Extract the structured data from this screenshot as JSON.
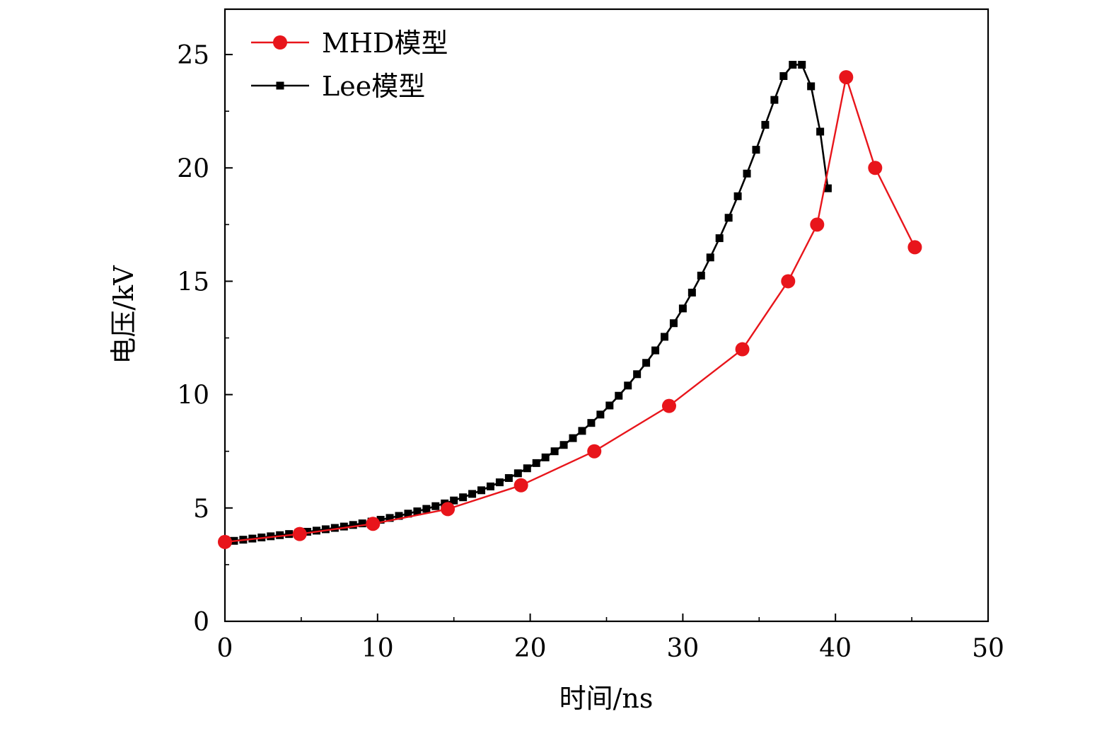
{
  "chart_data": {
    "type": "line",
    "title": "",
    "xlabel": "时间/ns",
    "ylabel": "电压/kV",
    "xlim": [
      0,
      50
    ],
    "ylim": [
      0,
      27
    ],
    "xticks": [
      0,
      10,
      20,
      30,
      40,
      50
    ],
    "yticks": [
      0,
      5,
      10,
      15,
      20,
      25
    ],
    "x_minor_step": 5,
    "y_minor_step": 2.5,
    "grid": false,
    "legend_position": "top-left",
    "series": [
      {
        "name": "MHD模型",
        "color": "#e8151b",
        "marker": "circle",
        "x": [
          0,
          4.9,
          9.7,
          14.6,
          19.4,
          24.2,
          29.1,
          33.9,
          36.9,
          38.8,
          40.7,
          42.6,
          45.2
        ],
        "y": [
          3.5,
          3.85,
          4.3,
          4.95,
          6.0,
          7.5,
          9.5,
          12.0,
          15.0,
          17.5,
          24.0,
          20.0,
          16.5
        ]
      },
      {
        "name": "Lee模型",
        "color": "#000000",
        "marker": "square",
        "x": [
          0,
          0.6,
          1.2,
          1.8,
          2.4,
          3.0,
          3.6,
          4.2,
          4.8,
          5.4,
          6.0,
          6.6,
          7.2,
          7.8,
          8.4,
          9.0,
          9.6,
          10.2,
          10.8,
          11.4,
          12.0,
          12.6,
          13.2,
          13.8,
          14.4,
          15.0,
          15.6,
          16.2,
          16.8,
          17.4,
          18.0,
          18.6,
          19.2,
          19.8,
          20.4,
          21.0,
          21.6,
          22.2,
          22.8,
          23.4,
          24.0,
          24.6,
          25.2,
          25.8,
          26.4,
          27.0,
          27.6,
          28.2,
          28.8,
          29.4,
          30.0,
          30.6,
          31.2,
          31.8,
          32.4,
          33.0,
          33.6,
          34.2,
          34.8,
          35.4,
          36.0,
          36.6,
          37.2,
          37.8,
          38.4,
          39.0,
          39.5
        ],
        "y": [
          3.6,
          3.55,
          3.6,
          3.65,
          3.7,
          3.75,
          3.8,
          3.85,
          3.9,
          3.95,
          4.0,
          4.06,
          4.12,
          4.18,
          4.25,
          4.32,
          4.4,
          4.48,
          4.56,
          4.65,
          4.75,
          4.85,
          4.96,
          5.08,
          5.2,
          5.33,
          5.47,
          5.62,
          5.78,
          5.95,
          6.13,
          6.32,
          6.53,
          6.75,
          6.98,
          7.23,
          7.5,
          7.78,
          8.08,
          8.4,
          8.75,
          9.12,
          9.52,
          9.95,
          10.4,
          10.9,
          11.4,
          11.95,
          12.55,
          13.15,
          13.8,
          14.5,
          15.25,
          16.05,
          16.9,
          17.8,
          18.75,
          19.75,
          20.8,
          21.9,
          23.0,
          24.05,
          24.55,
          24.55,
          23.6,
          21.6,
          19.1
        ]
      }
    ]
  }
}
